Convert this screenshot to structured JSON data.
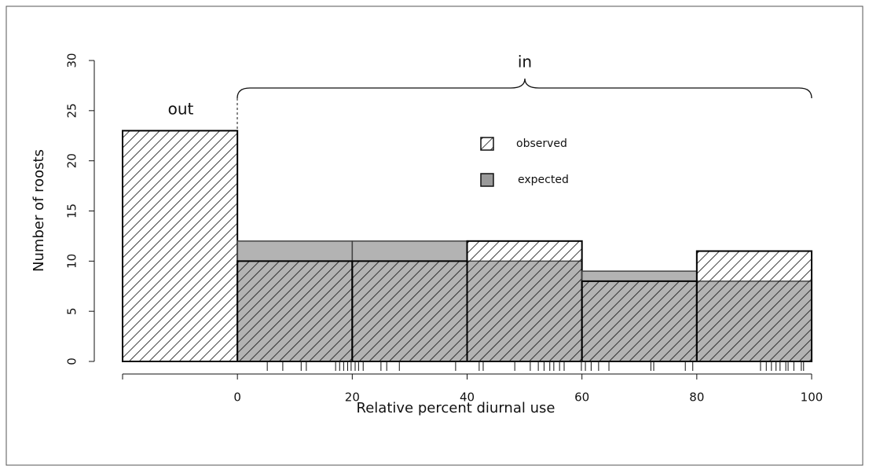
{
  "chart_data": {
    "type": "histogram",
    "xlabel": "Relative percent diurnal use",
    "ylabel": "Number of roosts",
    "annotations": [
      "out",
      "in"
    ],
    "bins": [
      -20,
      0,
      20,
      40,
      60,
      80,
      100
    ],
    "series": [
      {
        "name": "observed",
        "color": "#000000",
        "values": [
          23,
          10,
          10,
          12,
          8,
          11
        ]
      },
      {
        "name": "expected",
        "color": "#9a9a9a",
        "values": [
          null,
          12,
          12,
          10,
          9,
          8
        ]
      }
    ],
    "rug": [
      5.2,
      7.9,
      11.1,
      12.0,
      17.1,
      17.8,
      18.5,
      19.2,
      19.8,
      20.5,
      21.1,
      21.9,
      25.0,
      26.0,
      28.2,
      38.0,
      42.1,
      42.8,
      48.3,
      51.0,
      52.4,
      53.4,
      54.4,
      55.1,
      56.1,
      56.9,
      59.9,
      60.6,
      61.6,
      62.9,
      64.7,
      72.0,
      72.5,
      78.0,
      79.3,
      91.1,
      92.1,
      93.0,
      93.8,
      94.5,
      95.5,
      95.9,
      96.9,
      98.2,
      98.6
    ],
    "xlim": [
      -20,
      100
    ],
    "xticks": [
      0,
      20,
      40,
      60,
      80,
      100
    ],
    "ylim": [
      0,
      30
    ],
    "yticks": [
      0,
      5,
      10,
      15,
      20,
      25,
      30
    ]
  }
}
